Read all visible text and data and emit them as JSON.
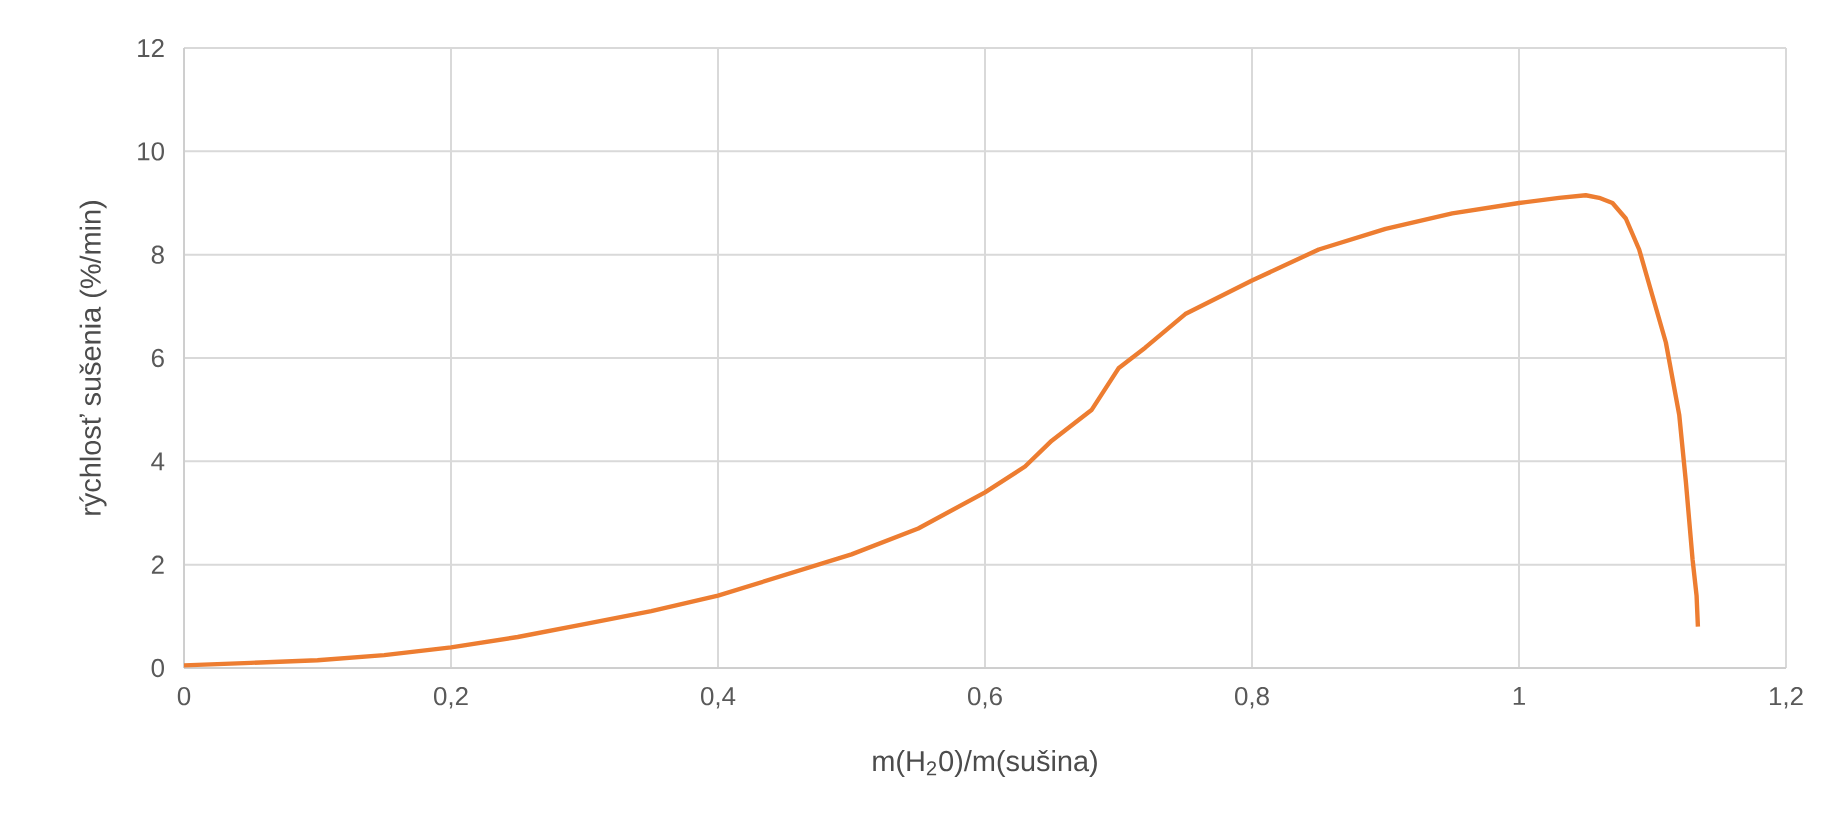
{
  "chart_data": {
    "type": "line",
    "xlabel": "m(H$_{2}$0)/m(sušina)",
    "ylabel": "rýchlosť sušenia (%/min)",
    "xlim": [
      0,
      1.2
    ],
    "ylim": [
      0,
      12
    ],
    "xticks": [
      0,
      {
        "value": 0.2,
        "label": "0,2"
      },
      {
        "value": 0.4,
        "label": "0,4"
      },
      {
        "value": 0.6,
        "label": "0,6"
      },
      {
        "value": 0.8,
        "label": "0,8"
      },
      1,
      {
        "value": 1.2,
        "label": "1,2"
      }
    ],
    "yticks": [
      0,
      2,
      4,
      6,
      8,
      10,
      12
    ],
    "grid": true,
    "marker": "none",
    "line_style": "solid",
    "series": [
      {
        "color": "#ed7d31",
        "x": [
          0,
          0.05,
          0.1,
          0.15,
          0.2,
          0.25,
          0.3,
          0.35,
          0.4,
          0.45,
          0.5,
          0.55,
          0.6,
          0.63,
          0.65,
          0.68,
          0.7,
          0.72,
          0.75,
          0.8,
          0.85,
          0.9,
          0.95,
          1.0,
          1.03,
          1.05,
          1.06,
          1.07,
          1.08,
          1.09,
          1.1,
          1.11,
          1.12,
          1.125,
          1.13,
          1.133,
          1.134
        ],
        "values": [
          0.05,
          0.1,
          0.15,
          0.25,
          0.4,
          0.6,
          0.85,
          1.1,
          1.4,
          1.8,
          2.2,
          2.7,
          3.4,
          3.9,
          4.4,
          5.0,
          5.8,
          6.2,
          6.85,
          7.5,
          8.1,
          8.5,
          8.8,
          9.0,
          9.1,
          9.15,
          9.1,
          9.0,
          8.7,
          8.1,
          7.2,
          6.3,
          4.9,
          3.6,
          2.1,
          1.4,
          0.8
        ]
      }
    ]
  }
}
